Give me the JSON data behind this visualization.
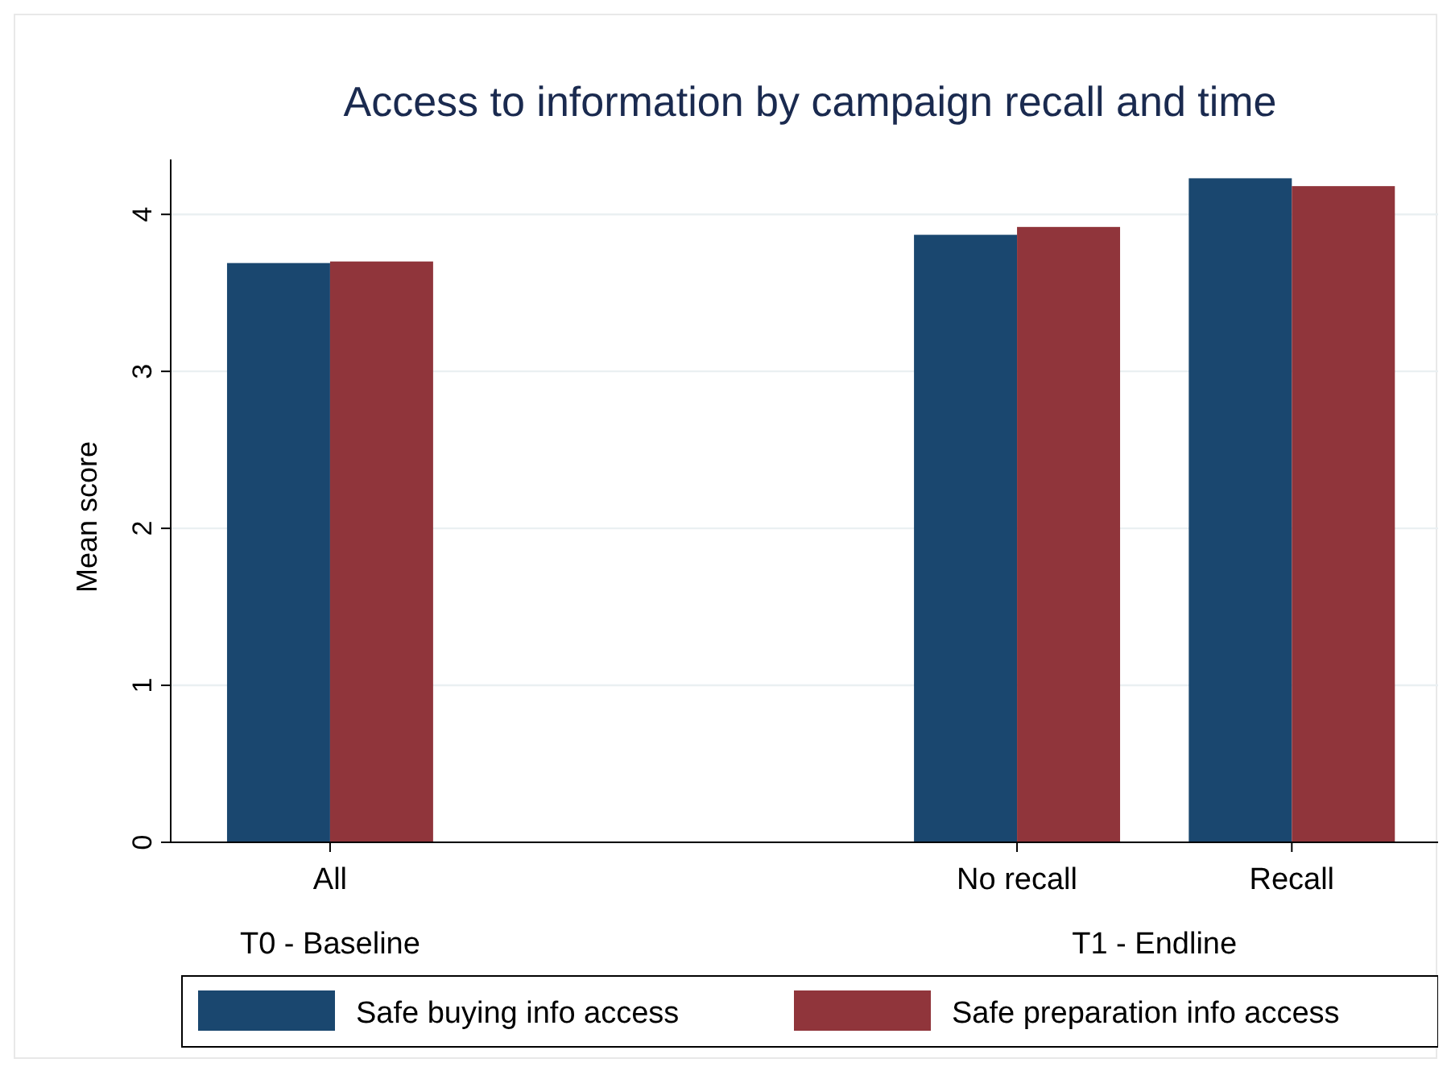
{
  "chart_data": {
    "type": "bar",
    "title": "Access to information by campaign recall and time",
    "ylabel": "Mean score",
    "categories": [
      "All",
      "No recall",
      "Recall"
    ],
    "series": [
      {
        "name": "Safe buying info access",
        "color": "#1a476f",
        "values": [
          3.69,
          3.87,
          4.23
        ]
      },
      {
        "name": "Safe preparation info access",
        "color": "#90353b",
        "values": [
          3.7,
          3.92,
          4.18
        ]
      }
    ],
    "annotations": [
      "T0 - Baseline",
      "T1 - Endline"
    ],
    "ylim": [
      0,
      4.35
    ],
    "yticks": [
      0,
      1,
      2,
      3,
      4
    ],
    "grid": "y",
    "legend": "bottom"
  }
}
